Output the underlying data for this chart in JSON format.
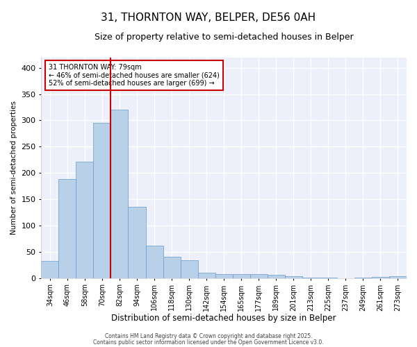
{
  "title": "31, THORNTON WAY, BELPER, DE56 0AH",
  "subtitle": "Size of property relative to semi-detached houses in Belper",
  "xlabel": "Distribution of semi-detached houses by size in Belper",
  "ylabel": "Number of semi-detached properties",
  "categories": [
    "34sqm",
    "46sqm",
    "58sqm",
    "70sqm",
    "82sqm",
    "94sqm",
    "106sqm",
    "118sqm",
    "130sqm",
    "142sqm",
    "154sqm",
    "165sqm",
    "177sqm",
    "189sqm",
    "201sqm",
    "213sqm",
    "225sqm",
    "237sqm",
    "249sqm",
    "261sqm",
    "273sqm"
  ],
  "values": [
    32,
    188,
    221,
    295,
    320,
    135,
    62,
    41,
    34,
    10,
    7,
    8,
    8,
    6,
    3,
    1,
    1,
    0,
    1,
    2,
    3
  ],
  "bar_color": "#b8d0e8",
  "bar_edge_color": "#6699cc",
  "highlight_line_index": 4,
  "highlight_label": "31 THORNTON WAY: 79sqm",
  "pct_smaller": "46% of semi-detached houses are smaller (624)",
  "pct_larger": "52% of semi-detached houses are larger (699)",
  "annotation_box_color": "#cc0000",
  "line_color": "#cc0000",
  "ylim": [
    0,
    420
  ],
  "yticks": [
    0,
    50,
    100,
    150,
    200,
    250,
    300,
    350,
    400
  ],
  "footer1": "Contains HM Land Registry data © Crown copyright and database right 2025.",
  "footer2": "Contains public sector information licensed under the Open Government Licence v3.0.",
  "bg_color": "#edf0fa",
  "grid_color": "#ffffff",
  "title_fontsize": 11,
  "subtitle_fontsize": 9,
  "tick_fontsize": 7,
  "ylabel_fontsize": 7.5,
  "xlabel_fontsize": 8.5,
  "footer_fontsize": 5.5
}
